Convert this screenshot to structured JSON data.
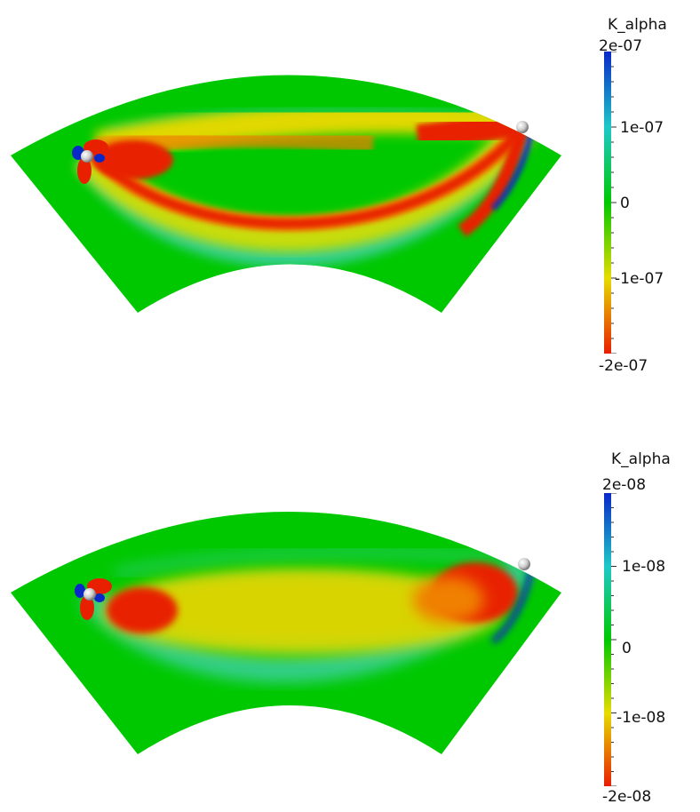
{
  "panels": [
    {
      "colorbar": {
        "title": "K_alpha",
        "max_label": "2e-07",
        "upper_label": "1e-07",
        "mid_label": "0",
        "lower_label": "-1e-07",
        "min_label": "-2e-07"
      }
    },
    {
      "colorbar": {
        "title": "K_alpha",
        "max_label": "2e-08",
        "upper_label": "1e-08",
        "mid_label": "0",
        "lower_label": "-1e-08",
        "min_label": "-2e-08"
      }
    }
  ],
  "colors": {
    "background_field": "#00c800",
    "negative_max": "#e81e00",
    "mid_negative": "#e6dc00",
    "positive_max": "#0a28c8",
    "mid_positive": "#1ec8c8"
  },
  "icons": [
    "source-sphere-icon",
    "receiver-sphere-icon"
  ]
}
